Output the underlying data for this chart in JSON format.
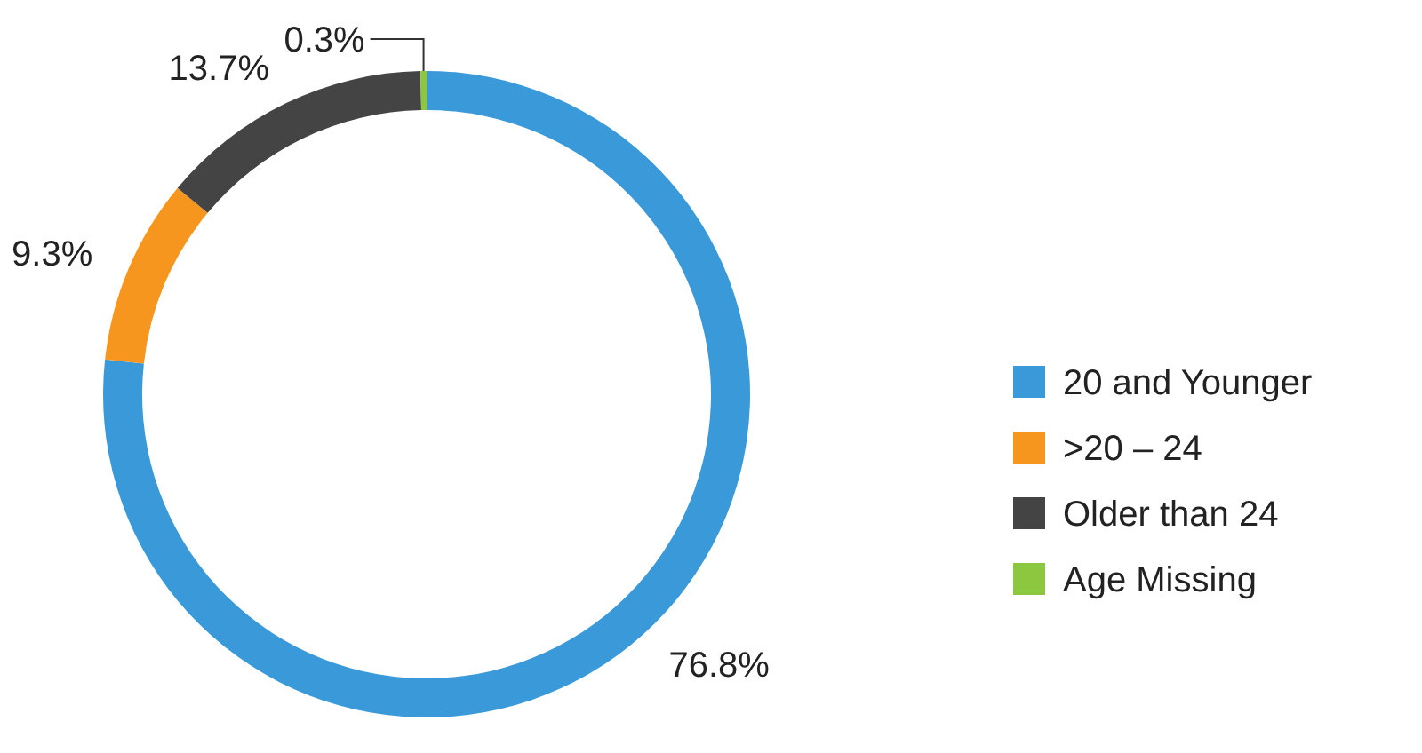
{
  "chart_data": {
    "type": "donut",
    "categories": [
      "20 and Younger",
      ">20 – 24",
      "Older than 24",
      "Age Missing"
    ],
    "values": [
      76.8,
      9.3,
      13.7,
      0.3
    ],
    "colors": [
      "#3a9ad9",
      "#f7961e",
      "#444444",
      "#8dc63f"
    ],
    "value_labels": [
      "76.8%",
      "9.3%",
      "13.7%",
      "0.3%"
    ],
    "legend": "right"
  }
}
